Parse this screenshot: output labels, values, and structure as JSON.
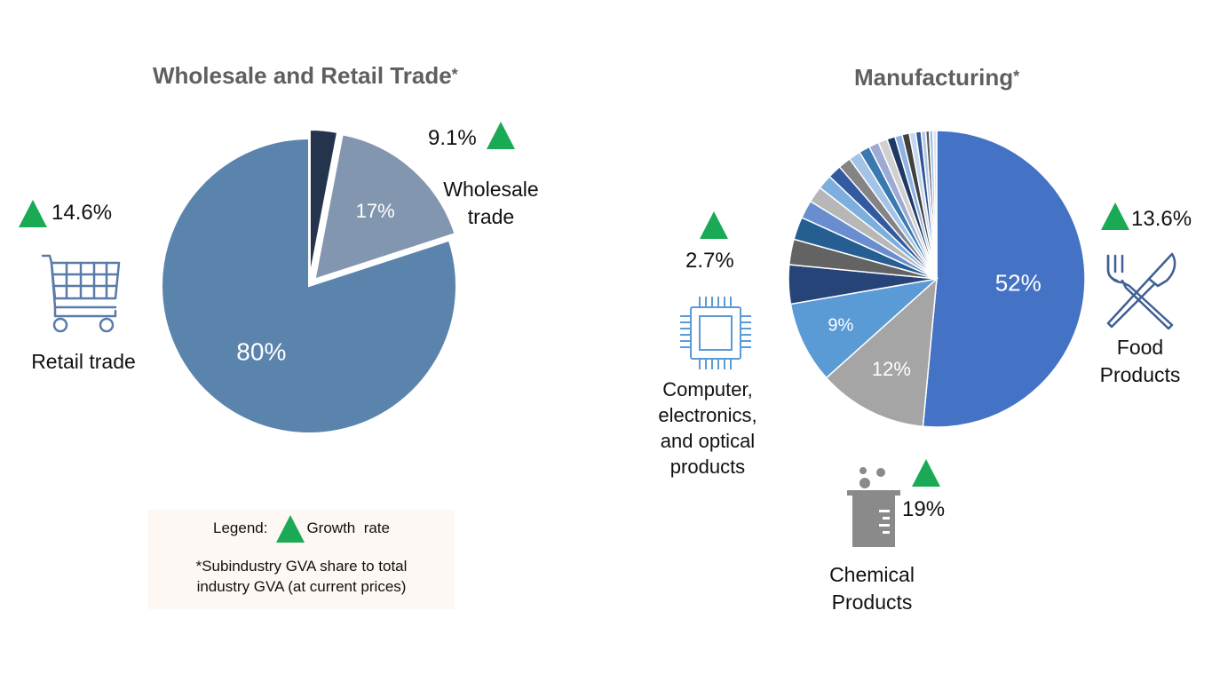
{
  "colors": {
    "growth_up": "#1aaa55",
    "retail": "#5b84ad",
    "wholesale": "#8396b0",
    "other_trade": "#24344d",
    "food": "#4472c4",
    "chemical": "#a5a5a5",
    "computer": "#5b9bd5",
    "icon_blue": "#5a7aa8",
    "icon_gray": "#8a8a8a"
  },
  "left": {
    "title": "Wholesale and Retail Trade",
    "title_star": "*",
    "retail_growth": "14.6%",
    "retail_label": "Retail trade",
    "retail_icon": "shopping-cart-icon",
    "wholesale_growth": "9.1%",
    "wholesale_label_line1": "Wholesale",
    "wholesale_label_line2": "trade"
  },
  "right": {
    "title": "Manufacturing",
    "title_star": "*",
    "food_growth": "13.6%",
    "food_label_line1": "Food",
    "food_label_line2": "Products",
    "food_icon": "fork-knife-icon",
    "computer_growth": "2.7%",
    "computer_label_lines": [
      "Computer,",
      "electronics,",
      "and optical",
      "products"
    ],
    "computer_icon": "microchip-icon",
    "chemical_growth": "19%",
    "chemical_label_line1": "Chemical",
    "chemical_label_line2": "Products",
    "chemical_icon": "beaker-icon"
  },
  "legend": {
    "prefix": "Legend:",
    "growth_text": "Growth  rate",
    "note_line1": "*Subindustry GVA share to total",
    "note_line2": "industry GVA (at current prices)"
  },
  "chart_data": [
    {
      "type": "pie",
      "title": "Wholesale and Retail Trade*",
      "slices": [
        {
          "label": "Retail trade",
          "value": 80,
          "display": "80%",
          "color": "#5b84ad"
        },
        {
          "label": "Wholesale trade",
          "value": 17,
          "display": "17%",
          "color": "#8396b0",
          "exploded": true
        },
        {
          "label": "",
          "value": 3,
          "display": "",
          "color": "#24344d",
          "exploded": true
        }
      ],
      "growth_rates": {
        "Retail trade": "14.6%",
        "Wholesale trade": "9.1%"
      }
    },
    {
      "type": "pie",
      "title": "Manufacturing*",
      "slices": [
        {
          "label": "Food Products",
          "value": 52,
          "display": "52%",
          "color": "#4472c4"
        },
        {
          "label": "Chemical Products",
          "value": 12,
          "display": "12%",
          "color": "#a5a5a5"
        },
        {
          "label": "Computer, electronics, and optical products",
          "value": 9,
          "display": "9%",
          "color": "#5b9bd5"
        },
        {
          "label": "",
          "value": 4.3,
          "display": "",
          "color": "#264478"
        },
        {
          "label": "",
          "value": 2.8,
          "display": "",
          "color": "#636363"
        },
        {
          "label": "",
          "value": 2.5,
          "display": "",
          "color": "#255e91"
        },
        {
          "label": "",
          "value": 2.0,
          "display": "",
          "color": "#698ed0"
        },
        {
          "label": "",
          "value": 1.8,
          "display": "",
          "color": "#b7b7b7"
        },
        {
          "label": "",
          "value": 1.6,
          "display": "",
          "color": "#7cafdd"
        },
        {
          "label": "",
          "value": 1.5,
          "display": "",
          "color": "#335aa1"
        },
        {
          "label": "",
          "value": 1.4,
          "display": "",
          "color": "#848484"
        },
        {
          "label": "",
          "value": 1.3,
          "display": "",
          "color": "#a3c4e7"
        },
        {
          "label": "",
          "value": 1.2,
          "display": "",
          "color": "#3a78b0"
        },
        {
          "label": "",
          "value": 1.1,
          "display": "",
          "color": "#9dabd3"
        },
        {
          "label": "",
          "value": 1.0,
          "display": "",
          "color": "#d0d0d0"
        },
        {
          "label": "",
          "value": 0.9,
          "display": "",
          "color": "#1f3864"
        },
        {
          "label": "",
          "value": 0.8,
          "display": "",
          "color": "#8fb4e3"
        },
        {
          "label": "",
          "value": 0.8,
          "display": "",
          "color": "#404040"
        },
        {
          "label": "",
          "value": 0.7,
          "display": "",
          "color": "#c5d7ef"
        },
        {
          "label": "",
          "value": 0.6,
          "display": "",
          "color": "#2e5597"
        },
        {
          "label": "",
          "value": 0.5,
          "display": "",
          "color": "#b4c7e7"
        },
        {
          "label": "",
          "value": 0.4,
          "display": "",
          "color": "#595959"
        },
        {
          "label": "",
          "value": 0.4,
          "display": "",
          "color": "#9dc3e6"
        },
        {
          "label": "",
          "value": 0.4,
          "display": "",
          "color": "#dae3f3"
        }
      ],
      "growth_rates": {
        "Food Products": "13.6%",
        "Chemical Products": "19%",
        "Computer, electronics, and optical products": "2.7%"
      }
    }
  ]
}
